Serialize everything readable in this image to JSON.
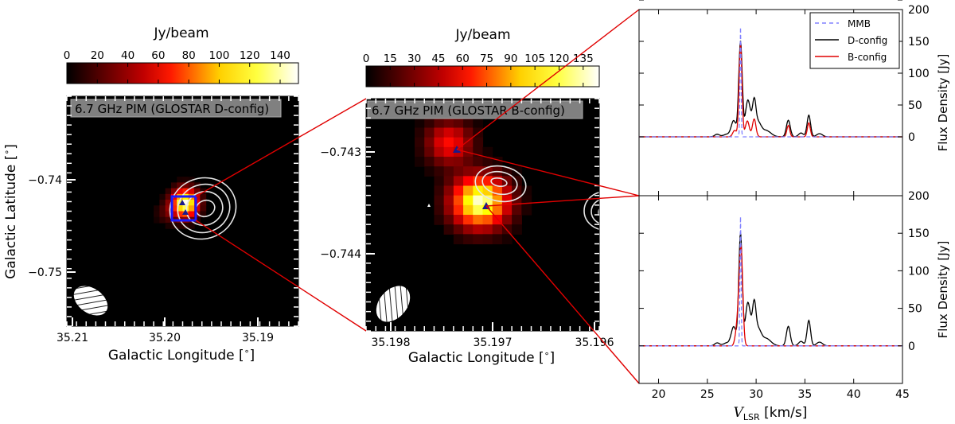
{
  "chart_data": [
    {
      "type": "heatmap",
      "colorbar": {
        "label": "Jy/beam",
        "ticks": [
          "0",
          "20",
          "40",
          "60",
          "80",
          "100",
          "120",
          "140"
        ],
        "range": [
          0,
          152
        ],
        "colormap": "hot"
      },
      "panel_label": "6.7 GHz PIM (GLOSTAR D-config)",
      "xlabel": "Galactic Longitude [$^\\circ$]",
      "ylabel": "Galactic Latitude [$^\\circ$]",
      "xticks": [
        "35.21",
        "35.20",
        "35.19"
      ],
      "yticks": [
        "−0.74",
        "−0.75"
      ],
      "xlim": [
        35.21,
        35.1855
      ],
      "ylim": [
        -0.7555,
        -0.7325
      ],
      "peak": {
        "l": 35.1975,
        "b": -0.7432,
        "value": 150
      }
    },
    {
      "type": "heatmap",
      "colorbar": {
        "label": "Jy/beam",
        "ticks": [
          "0",
          "15",
          "30",
          "45",
          "60",
          "75",
          "90",
          "105",
          "120",
          "135"
        ],
        "range": [
          0,
          145
        ],
        "colormap": "hot"
      },
      "panel_label": "6.7 GHz PIM (GLOSTAR B-config)",
      "xlabel": "Galactic Longitude [$^\\circ$]",
      "xticks": [
        "35.198",
        "35.197",
        "35.196"
      ],
      "yticks": [
        "−0.743",
        "−0.744"
      ],
      "xlim": [
        35.19825,
        35.19595
      ],
      "ylim": [
        -0.74455,
        -0.74225
      ],
      "sources": [
        {
          "l": 35.19743,
          "b": -0.74272,
          "value": 60
        },
        {
          "l": 35.19708,
          "b": -0.74335,
          "value": 140
        }
      ]
    },
    {
      "type": "line",
      "xlabel": "$V_{\\rm LSR}$ [km/s]",
      "ylabel": "Flux Density [Jy]",
      "xlim": [
        18,
        45
      ],
      "xticks": [
        "20",
        "25",
        "30",
        "35",
        "40",
        "45"
      ],
      "legend": {
        "position": "top-right",
        "entries": [
          "MMB",
          "D-config",
          "B-config"
        ]
      },
      "top_panel": {
        "ylim": [
          0,
          200
        ],
        "yticks": [
          "0",
          "50",
          "100",
          "150",
          "200"
        ]
      },
      "bottom_panel": {
        "ylim": [
          -50,
          200
        ],
        "yticks": [
          "−50",
          "0",
          "50",
          "100",
          "150",
          "200"
        ]
      }
    }
  ]
}
